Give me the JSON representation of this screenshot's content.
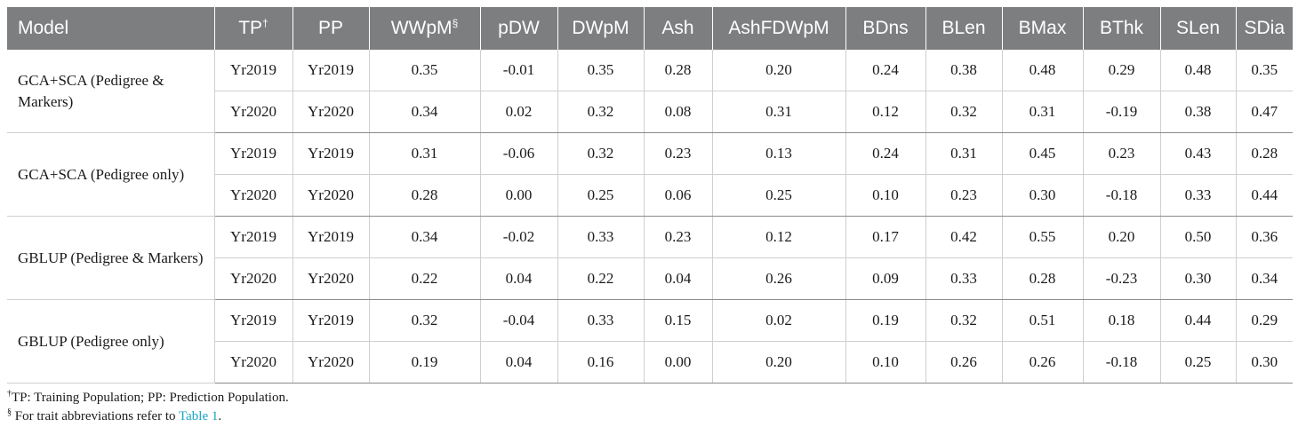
{
  "table": {
    "headers": [
      {
        "text": "Model",
        "sup": ""
      },
      {
        "text": "TP",
        "sup": "†"
      },
      {
        "text": "PP",
        "sup": ""
      },
      {
        "text": "WWpM",
        "sup": "§"
      },
      {
        "text": "pDW",
        "sup": ""
      },
      {
        "text": "DWpM",
        "sup": ""
      },
      {
        "text": "Ash",
        "sup": ""
      },
      {
        "text": "AshFDWpM",
        "sup": ""
      },
      {
        "text": "BDns",
        "sup": ""
      },
      {
        "text": "BLen",
        "sup": ""
      },
      {
        "text": "BMax",
        "sup": ""
      },
      {
        "text": "BThk",
        "sup": ""
      },
      {
        "text": "SLen",
        "sup": ""
      },
      {
        "text": "SDia",
        "sup": ""
      }
    ],
    "groups": [
      {
        "model": "GCA+SCA (Pedigree & Markers)",
        "rows": [
          {
            "tp": "Yr2019",
            "pp": "Yr2019",
            "values": [
              "0.35",
              "-0.01",
              "0.35",
              "0.28",
              "0.20",
              "0.24",
              "0.38",
              "0.48",
              "0.29",
              "0.48",
              "0.35"
            ]
          },
          {
            "tp": "Yr2020",
            "pp": "Yr2020",
            "values": [
              "0.34",
              "0.02",
              "0.32",
              "0.08",
              "0.31",
              "0.12",
              "0.32",
              "0.31",
              "-0.19",
              "0.38",
              "0.47"
            ]
          }
        ]
      },
      {
        "model": "GCA+SCA (Pedigree only)",
        "rows": [
          {
            "tp": "Yr2019",
            "pp": "Yr2019",
            "values": [
              "0.31",
              "-0.06",
              "0.32",
              "0.23",
              "0.13",
              "0.24",
              "0.31",
              "0.45",
              "0.23",
              "0.43",
              "0.28"
            ]
          },
          {
            "tp": "Yr2020",
            "pp": "Yr2020",
            "values": [
              "0.28",
              "0.00",
              "0.25",
              "0.06",
              "0.25",
              "0.10",
              "0.23",
              "0.30",
              "-0.18",
              "0.33",
              "0.44"
            ]
          }
        ]
      },
      {
        "model": "GBLUP (Pedigree & Markers)",
        "rows": [
          {
            "tp": "Yr2019",
            "pp": "Yr2019",
            "values": [
              "0.34",
              "-0.02",
              "0.33",
              "0.23",
              "0.12",
              "0.17",
              "0.42",
              "0.55",
              "0.20",
              "0.50",
              "0.36"
            ]
          },
          {
            "tp": "Yr2020",
            "pp": "Yr2020",
            "values": [
              "0.22",
              "0.04",
              "0.22",
              "0.04",
              "0.26",
              "0.09",
              "0.33",
              "0.28",
              "-0.23",
              "0.30",
              "0.34"
            ]
          }
        ]
      },
      {
        "model": "GBLUP (Pedigree only)",
        "rows": [
          {
            "tp": "Yr2019",
            "pp": "Yr2019",
            "values": [
              "0.32",
              "-0.04",
              "0.33",
              "0.15",
              "0.02",
              "0.19",
              "0.32",
              "0.51",
              "0.18",
              "0.44",
              "0.29"
            ]
          },
          {
            "tp": "Yr2020",
            "pp": "Yr2020",
            "values": [
              "0.19",
              "0.04",
              "0.16",
              "0.00",
              "0.20",
              "0.10",
              "0.26",
              "0.26",
              "-0.18",
              "0.25",
              "0.30"
            ]
          }
        ]
      }
    ]
  },
  "footnotes": {
    "note1": {
      "mark": "†",
      "text": "TP: Training Population; PP: Prediction Population."
    },
    "note2": {
      "mark": "§",
      "text": " For trait abbreviations refer to ",
      "link": "Table 1",
      "end": "."
    }
  },
  "colors": {
    "header_bg": "#7d7e80",
    "link": "#1aa3c4"
  }
}
